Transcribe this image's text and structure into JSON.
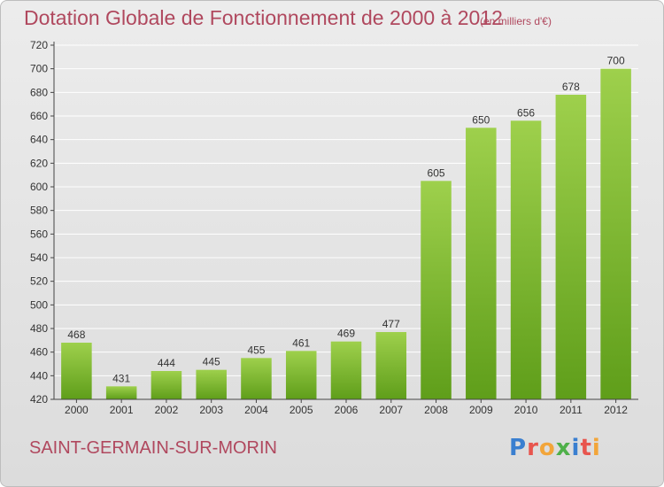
{
  "header": {
    "title": "Dotation Globale de Fonctionnement de 2000 à 2012",
    "subtitle": "(en milliers d'€)"
  },
  "footer": {
    "commune": "SAINT-GERMAIN-SUR-MORIN",
    "logo": {
      "letters": [
        {
          "char": "P",
          "color": "#3a7fd0"
        },
        {
          "char": "r",
          "color": "#e8554e"
        },
        {
          "char": "o",
          "color": "#f2a53a"
        },
        {
          "char": "x",
          "color": "#4fb04a"
        },
        {
          "char": "i",
          "color": "#3a7fd0"
        },
        {
          "char": "t",
          "color": "#e8554e"
        },
        {
          "char": "i",
          "color": "#f2a53a"
        }
      ]
    }
  },
  "chart_data": {
    "type": "bar",
    "categories": [
      "2000",
      "2001",
      "2002",
      "2003",
      "2004",
      "2005",
      "2006",
      "2007",
      "2008",
      "2009",
      "2010",
      "2011",
      "2012"
    ],
    "values": [
      468,
      431,
      444,
      445,
      455,
      461,
      469,
      477,
      605,
      650,
      656,
      678,
      700
    ],
    "data_labels": [
      "468",
      "431",
      "444",
      "445",
      "455",
      "461",
      "469",
      "477",
      "605",
      "650",
      "656",
      "678",
      "700"
    ],
    "ylim": [
      420,
      720
    ],
    "yticks": [
      "420",
      "440",
      "460",
      "480",
      "500",
      "520",
      "540",
      "560",
      "580",
      "600",
      "620",
      "640",
      "660",
      "680",
      "700",
      "720"
    ],
    "grid": true,
    "colors": {
      "bar_top": "#9ed04c",
      "bar_bottom": "#5f9e1a",
      "grid": "#ffffff",
      "axis": "#444444"
    }
  }
}
